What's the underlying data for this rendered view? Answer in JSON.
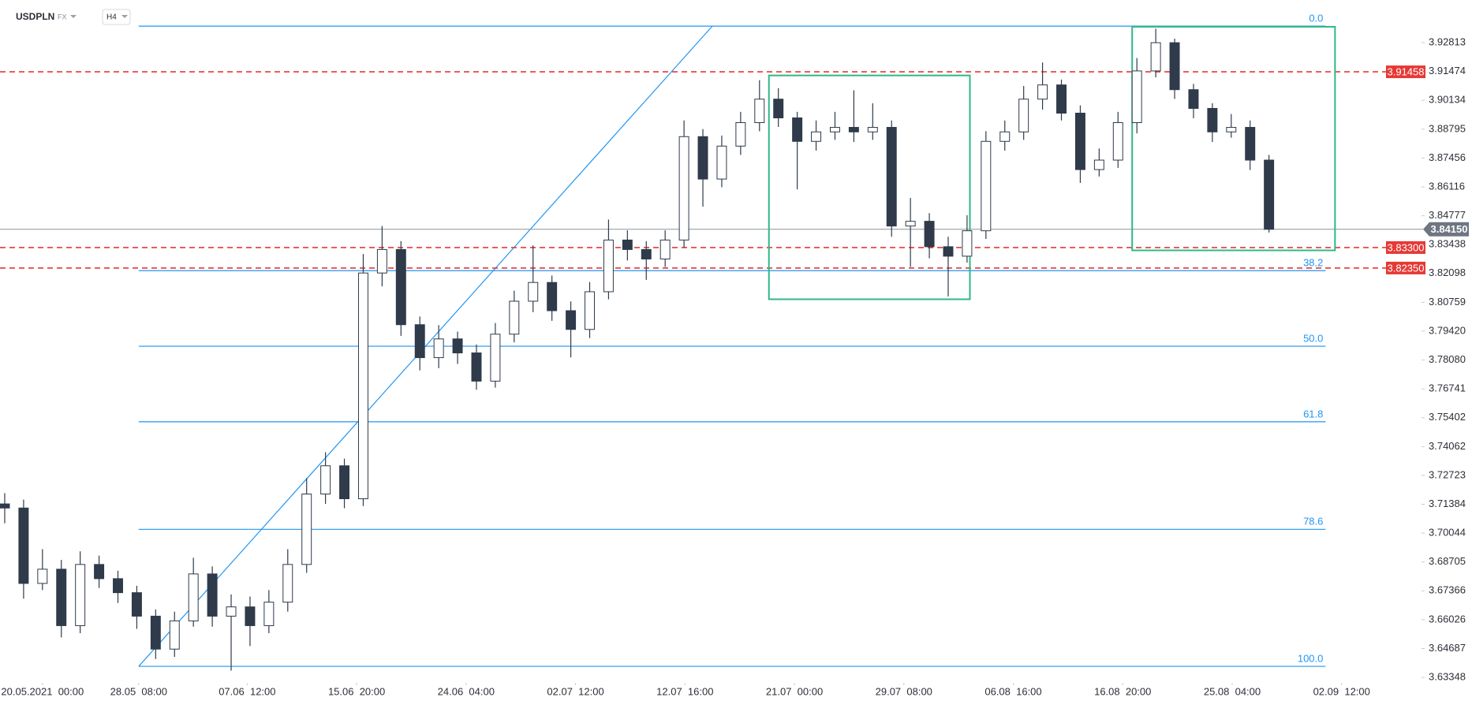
{
  "chart_data": {
    "type": "candlestick",
    "symbol": "USDPLN",
    "market": "FX",
    "timeframe": "H4",
    "open": [
      3.714,
      3.7121,
      3.6771,
      3.6837,
      3.6575,
      3.6859,
      3.6793,
      3.6728,
      3.6619,
      3.6466,
      3.6597,
      3.6815,
      3.6619,
      3.6662,
      3.6575,
      3.6684,
      3.6859,
      3.7186,
      3.7317,
      3.7164,
      3.8212,
      3.8321,
      3.7972,
      3.7819,
      3.7906,
      3.7841,
      3.771,
      3.7928,
      3.8081,
      3.8168,
      3.8037,
      3.795,
      3.8125,
      3.8365,
      3.8321,
      3.8277,
      3.8365,
      3.8845,
      3.8648,
      3.8801,
      3.891,
      3.9019,
      3.8932,
      3.8823,
      3.8867,
      3.8888,
      3.8867,
      3.8888,
      3.843,
      3.8452,
      3.8334,
      3.829,
      3.8408,
      3.8823,
      3.8867,
      3.9019,
      3.9085,
      3.8954,
      3.8692,
      3.8736,
      3.891,
      3.915,
      3.9281,
      3.9063,
      3.8976,
      3.8867,
      3.8888,
      3.8736
    ],
    "high": [
      3.719,
      3.716,
      3.693,
      3.688,
      3.692,
      3.69,
      3.683,
      3.676,
      3.665,
      3.664,
      3.689,
      3.685,
      3.672,
      3.671,
      3.674,
      3.693,
      3.726,
      3.738,
      3.735,
      3.83,
      3.843,
      3.836,
      3.801,
      3.797,
      3.794,
      3.788,
      3.798,
      3.813,
      3.834,
      3.82,
      3.808,
      3.817,
      3.846,
      3.841,
      3.836,
      3.841,
      3.892,
      3.888,
      3.885,
      3.896,
      3.9107,
      3.907,
      3.896,
      3.892,
      3.896,
      3.906,
      3.9,
      3.892,
      3.856,
      3.849,
      3.838,
      3.848,
      3.887,
      3.892,
      3.908,
      3.9189,
      3.911,
      3.899,
      3.879,
      3.896,
      3.921,
      3.9346,
      3.93,
      3.909,
      3.9,
      3.895,
      3.892,
      3.876
    ],
    "low": [
      3.705,
      3.67,
      3.674,
      3.652,
      3.654,
      3.675,
      3.668,
      3.656,
      3.642,
      3.643,
      3.657,
      3.657,
      3.6366,
      3.648,
      3.654,
      3.664,
      3.682,
      3.714,
      3.712,
      3.713,
      3.815,
      3.792,
      3.776,
      3.777,
      3.779,
      3.767,
      3.768,
      3.789,
      3.803,
      3.799,
      3.782,
      3.791,
      3.809,
      3.827,
      3.818,
      3.824,
      3.833,
      3.852,
      3.861,
      3.876,
      3.887,
      3.889,
      3.86,
      3.878,
      3.883,
      3.882,
      3.883,
      3.838,
      3.824,
      3.828,
      3.8103,
      3.826,
      3.837,
      3.878,
      3.883,
      3.897,
      3.892,
      3.863,
      3.866,
      3.87,
      3.886,
      3.912,
      3.902,
      3.893,
      3.882,
      3.884,
      3.869,
      3.84
    ],
    "close": [
      3.7121,
      3.6771,
      3.6837,
      3.6575,
      3.6859,
      3.6793,
      3.6728,
      3.6619,
      3.6466,
      3.6597,
      3.6815,
      3.6619,
      3.6662,
      3.6575,
      3.6684,
      3.6859,
      3.7186,
      3.7317,
      3.7164,
      3.8212,
      3.8321,
      3.7972,
      3.7819,
      3.7906,
      3.7841,
      3.771,
      3.7928,
      3.8081,
      3.8168,
      3.8037,
      3.795,
      3.8125,
      3.8365,
      3.8321,
      3.8277,
      3.8365,
      3.8845,
      3.8648,
      3.8801,
      3.891,
      3.9019,
      3.8932,
      3.8823,
      3.8867,
      3.8888,
      3.8867,
      3.8888,
      3.843,
      3.8452,
      3.8334,
      3.829,
      3.8408,
      3.8823,
      3.8867,
      3.9019,
      3.9085,
      3.8954,
      3.8692,
      3.8736,
      3.891,
      3.915,
      3.9281,
      3.9063,
      3.8976,
      3.8867,
      3.8888,
      3.8736,
      3.8415
    ],
    "up_color": "#ffffff",
    "down_color": "#2f3b4a",
    "edge_color": "#2f3b4a",
    "xlim": [
      -0.25,
      75
    ],
    "ylim": [
      3.6313,
      3.9406
    ],
    "xticks": [
      {
        "value": 2,
        "label": "20.05.2021  00:00"
      },
      {
        "value": 7.1,
        "label": "28.05  08:00"
      },
      {
        "value": 12.85,
        "label": "07.06  12:00"
      },
      {
        "value": 18.65,
        "label": "15.06  20:00"
      },
      {
        "value": 24.45,
        "label": "24.06  04:00"
      },
      {
        "value": 30.25,
        "label": "02.07  12:00"
      },
      {
        "value": 36.05,
        "label": "12.07  16:00"
      },
      {
        "value": 41.85,
        "label": "21.07  00:00"
      },
      {
        "value": 47.65,
        "label": "29.07  08:00"
      },
      {
        "value": 53.45,
        "label": "06.08  16:00"
      },
      {
        "value": 59.25,
        "label": "16.08  20:00"
      },
      {
        "value": 65.05,
        "label": "25.08  04:00"
      },
      {
        "value": 70.85,
        "label": "02.09  12:00"
      }
    ],
    "yticks": [
      3.92813,
      3.91474,
      3.90134,
      3.88795,
      3.87456,
      3.86116,
      3.84777,
      3.83438,
      3.82098,
      3.80759,
      {
        "value": 3.7942,
        "label": "3.79420"
      },
      {
        "value": 3.7808,
        "label": "3.78080"
      },
      3.76741,
      3.75402,
      3.74062,
      3.72723,
      3.71384,
      3.70044,
      3.68705,
      3.67366,
      3.66026,
      3.64687,
      3.63348
    ],
    "levels": [
      3.91458,
      {
        "value": 3.833,
        "label": "3.83300"
      },
      {
        "value": 3.8235,
        "label": "3.82350"
      }
    ],
    "level_color": "#e53935",
    "current_price": {
      "value": 3.8415,
      "label": "3.84150"
    },
    "current_color": "#6e7681",
    "fib": {
      "high": 3.9358,
      "low": 3.6386,
      "x_start": 7.1,
      "x_end": 70,
      "color": "#2196f3",
      "levels": [
        {
          "value": 0,
          "label": "0.0"
        },
        38.2,
        {
          "value": 50,
          "label": "50.0"
        },
        61.8,
        78.6,
        {
          "value": 100,
          "label": "100.0"
        }
      ]
    },
    "trendline": {
      "x": [
        7.1,
        37.5
      ],
      "y": [
        3.6386,
        3.9358
      ],
      "color": "#2196f3"
    },
    "rectangles": [
      {
        "x": [
          40.5,
          51.15
        ],
        "y": [
          3.9129,
          3.809
        ]
      },
      {
        "x": [
          59.75,
          70.5
        ],
        "y": [
          3.9355,
          3.8317
        ]
      }
    ],
    "rect_color": "#2eb886"
  }
}
